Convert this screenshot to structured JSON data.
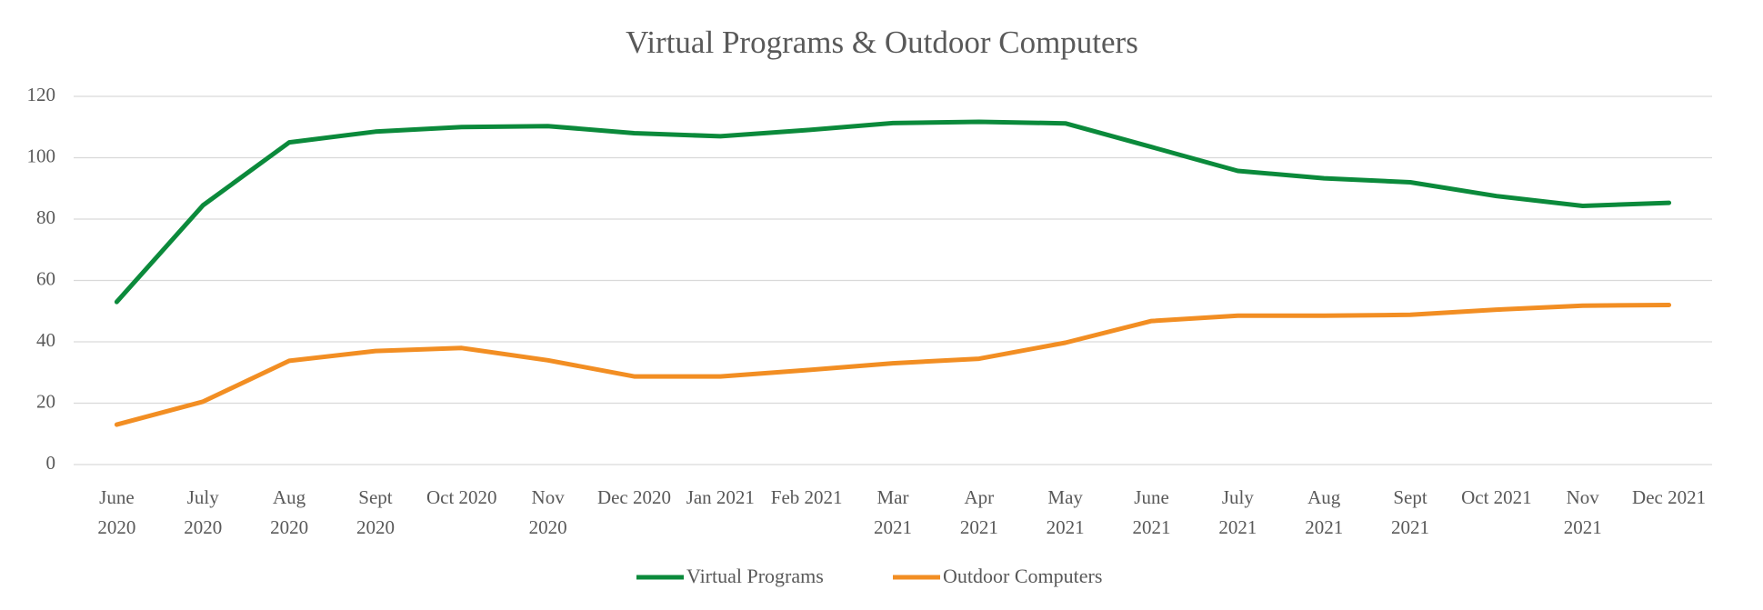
{
  "chart_data": {
    "type": "line",
    "title": "Virtual Programs & Outdoor Computers",
    "categories": [
      "June\n2020",
      "July\n2020",
      "Aug\n2020",
      "Sept\n2020",
      "Oct 2020",
      "Nov\n2020",
      "Dec 2020",
      "Jan 2021",
      "Feb 2021",
      "Mar\n2021",
      "Apr\n2021",
      "May\n2021",
      "June\n2021",
      "July\n2021",
      "Aug\n2021",
      "Sept\n2021",
      "Oct 2021",
      "Nov\n2021",
      "Dec 2021"
    ],
    "series": [
      {
        "name": "Virtual Programs",
        "color": "#0b8a3b",
        "values": [
          53,
          84.5,
          105,
          108.5,
          110,
          110.3,
          108,
          107,
          109,
          111.3,
          111.7,
          111.2,
          103.5,
          95.7,
          93.3,
          92,
          87.5,
          84.3,
          85.3
        ]
      },
      {
        "name": "Outdoor Computers",
        "color": "#f28e23",
        "values": [
          13,
          20.5,
          33.8,
          37,
          38,
          34,
          28.7,
          28.7,
          30.8,
          33,
          34.5,
          39.7,
          46.8,
          48.5,
          48.5,
          48.8,
          50.5,
          51.8,
          52
        ]
      }
    ],
    "ylim": [
      0,
      120
    ],
    "yticks": [
      0,
      20,
      40,
      60,
      80,
      100,
      120
    ],
    "grid": true,
    "legend": "bottom"
  }
}
